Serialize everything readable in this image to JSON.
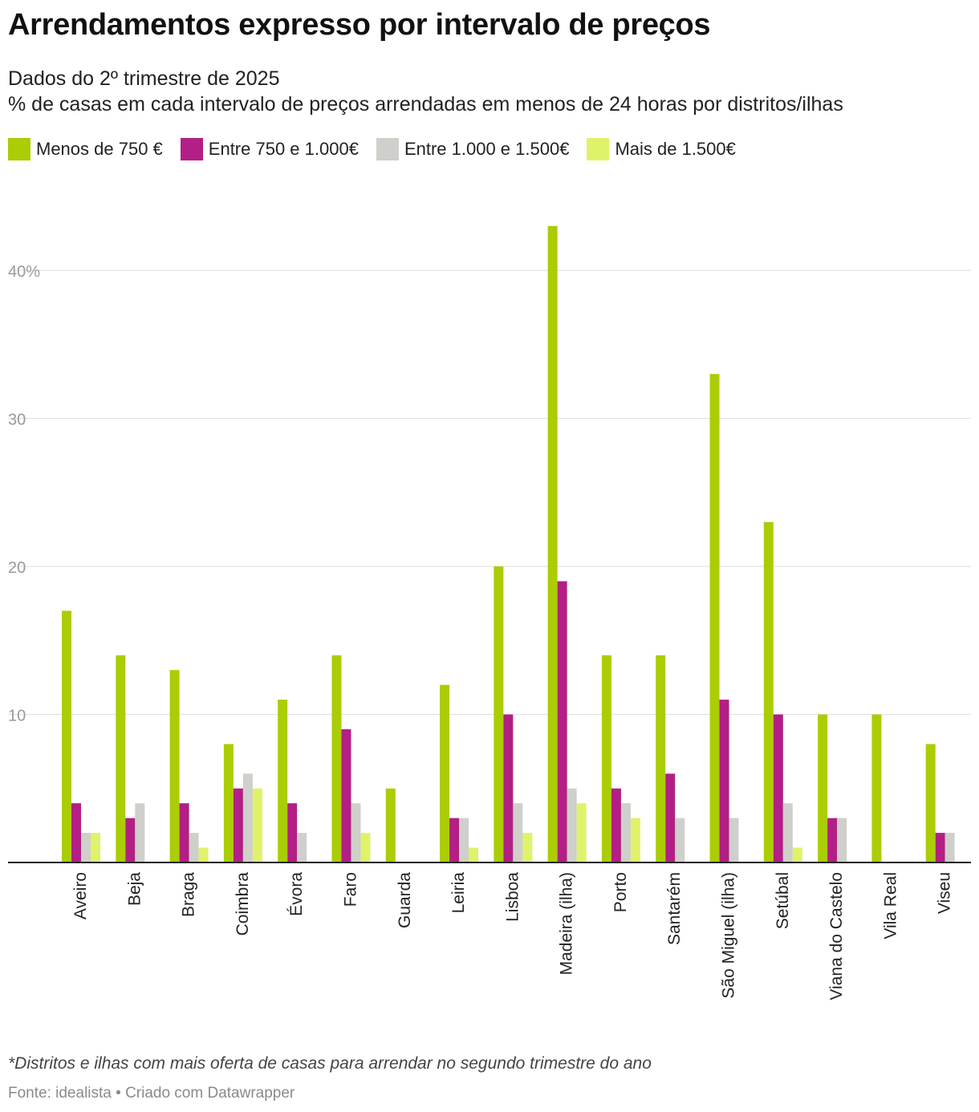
{
  "header": {
    "title": "Arrendamentos expresso por intervalo de preços",
    "subtitle_1": "Dados do 2º trimestre de 2025",
    "subtitle_2": "% de casas em cada intervalo de preços arrendadas em menos de 24 horas por distritos/ilhas"
  },
  "footer": {
    "note": "*Distritos e ilhas com mais oferta de casas para arrendar no segundo trimestre do ano",
    "source": "Fonte: idealista • Criado com Datawrapper"
  },
  "chart_data": {
    "type": "bar",
    "title": "Arrendamentos expresso por intervalo de preços",
    "categories": [
      "Aveiro",
      "Beja",
      "Braga",
      "Coimbra",
      "Évora",
      "Faro",
      "Guarda",
      "Leiria",
      "Lisboa",
      "Madeira (ilha)",
      "Porto",
      "Santarém",
      "São Miguel (ilha)",
      "Setúbal",
      "Viana do Castelo",
      "Vila Real",
      "Viseu"
    ],
    "series": [
      {
        "name": "Menos de 750 €",
        "color": "#aacd06",
        "values": [
          17,
          14,
          13,
          8,
          11,
          14,
          5,
          12,
          20,
          43,
          14,
          14,
          33,
          23,
          10,
          10,
          8
        ]
      },
      {
        "name": "Entre 750 e 1.000€",
        "color": "#b31f84",
        "values": [
          4,
          3,
          4,
          5,
          4,
          9,
          0,
          3,
          10,
          19,
          5,
          6,
          11,
          10,
          3,
          0,
          2
        ]
      },
      {
        "name": "Entre 1.000 e 1.500€",
        "color": "#cfcfcb",
        "values": [
          2,
          4,
          2,
          6,
          2,
          4,
          0,
          3,
          4,
          5,
          4,
          3,
          3,
          4,
          3,
          0,
          2
        ]
      },
      {
        "name": "Mais de 1.500€",
        "color": "#e0f26a",
        "values": [
          2,
          0,
          1,
          5,
          0,
          2,
          0,
          1,
          2,
          4,
          3,
          0,
          0,
          1,
          0,
          0,
          0
        ]
      }
    ],
    "yticks": [
      {
        "value": 10,
        "label": "10"
      },
      {
        "value": 20,
        "label": "20"
      },
      {
        "value": 30,
        "label": "30"
      },
      {
        "value": 40,
        "label": "40%"
      }
    ],
    "ylim": [
      0,
      45
    ],
    "grid": true,
    "legend": "top-left"
  }
}
